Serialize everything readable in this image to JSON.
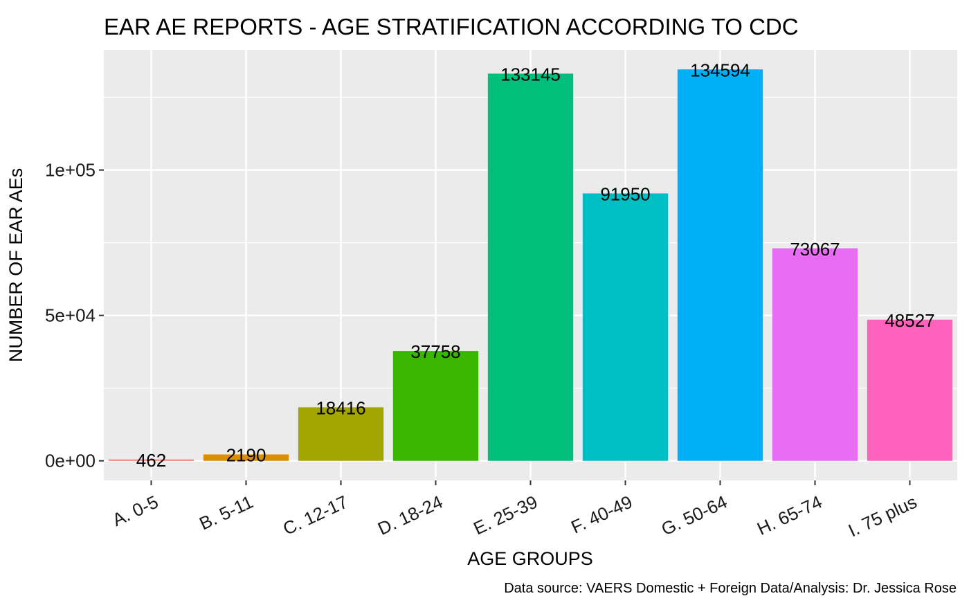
{
  "chart_data": {
    "type": "bar",
    "title": "EAR AE REPORTS - AGE STRATIFICATION ACCORDING TO CDC",
    "xlabel": "AGE GROUPS",
    "ylabel": "NUMBER OF EAR AEs",
    "caption": "Data source: VAERS Domestic + Foreign Data/Analysis: Dr. Jessica Rose",
    "categories": [
      "A. 0-5",
      "B. 5-11",
      "C. 12-17",
      "D. 18-24",
      "E. 25-39",
      "F. 40-49",
      "G. 50-64",
      "H. 65-74",
      "I. 75 plus"
    ],
    "values": [
      462,
      2190,
      18416,
      37758,
      133145,
      91950,
      134594,
      73067,
      48527
    ],
    "data_labels": [
      "462",
      "2190",
      "18416",
      "37758",
      "133145",
      "91950",
      "134594",
      "73067",
      "48527"
    ],
    "colors": [
      "#F8766D",
      "#D89000",
      "#A3A500",
      "#39B600",
      "#00BF7D",
      "#00BFC4",
      "#00B0F6",
      "#E76BF3",
      "#FF62BC"
    ],
    "ylim": [
      -6729.7,
      141323.7
    ],
    "yticks": [
      0,
      50000,
      100000
    ],
    "ytick_labels": [
      "0e+00",
      "5e+04",
      "1e+05"
    ],
    "panel_background": "#EBEBEB",
    "grid_color": "#FFFFFF",
    "grid": true,
    "legend": "none"
  }
}
